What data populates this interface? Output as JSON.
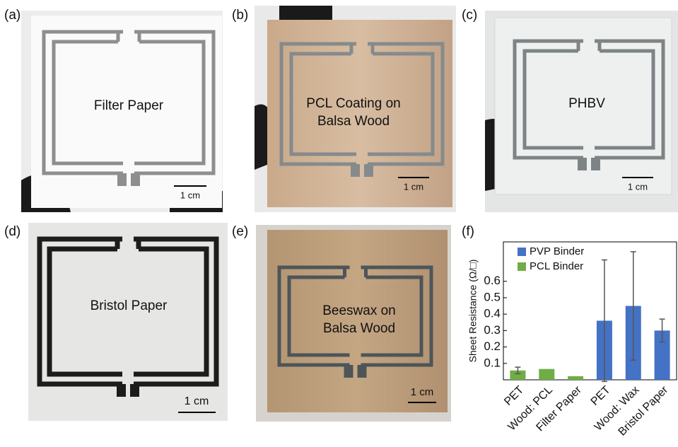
{
  "panels": [
    {
      "label": "(a)",
      "text": [
        "Filter Paper"
      ],
      "scale": "1 cm"
    },
    {
      "label": "(b)",
      "text": [
        "PCL Coating on",
        "Balsa Wood"
      ],
      "scale": "1 cm"
    },
    {
      "label": "(c)",
      "text": [
        "PHBV"
      ],
      "scale": "1 cm"
    },
    {
      "label": "(d)",
      "text": [
        "Bristol Paper"
      ],
      "scale": "1 cm"
    },
    {
      "label": "(e)",
      "text": [
        "Beeswax on",
        "Balsa Wood"
      ],
      "scale": "1 cm"
    }
  ],
  "chart_data": {
    "type": "bar",
    "label": "(f)",
    "ylabel": "Sheet Resistance (Ω/□)",
    "categories": [
      "PET",
      "Wood: PCL",
      "Filter Paper",
      "PET",
      "Wood: Wax",
      "Bristol Paper"
    ],
    "series": [
      {
        "name": "PVP Binder",
        "color": "#4472c4",
        "values": [
          null,
          null,
          null,
          0.36,
          0.45,
          0.3
        ],
        "errors": [
          null,
          null,
          null,
          0.37,
          0.33,
          0.07
        ]
      },
      {
        "name": "PCL Binder",
        "color": "#70ad47",
        "values": [
          0.057,
          0.066,
          0.022,
          null,
          null,
          null
        ],
        "errors": [
          0.02,
          null,
          null,
          null,
          null,
          null
        ]
      }
    ],
    "ylim": [
      0,
      0.84
    ],
    "yticks": [
      0.1,
      0.2,
      0.3,
      0.4,
      0.5,
      0.6
    ],
    "legend": "upper left"
  }
}
